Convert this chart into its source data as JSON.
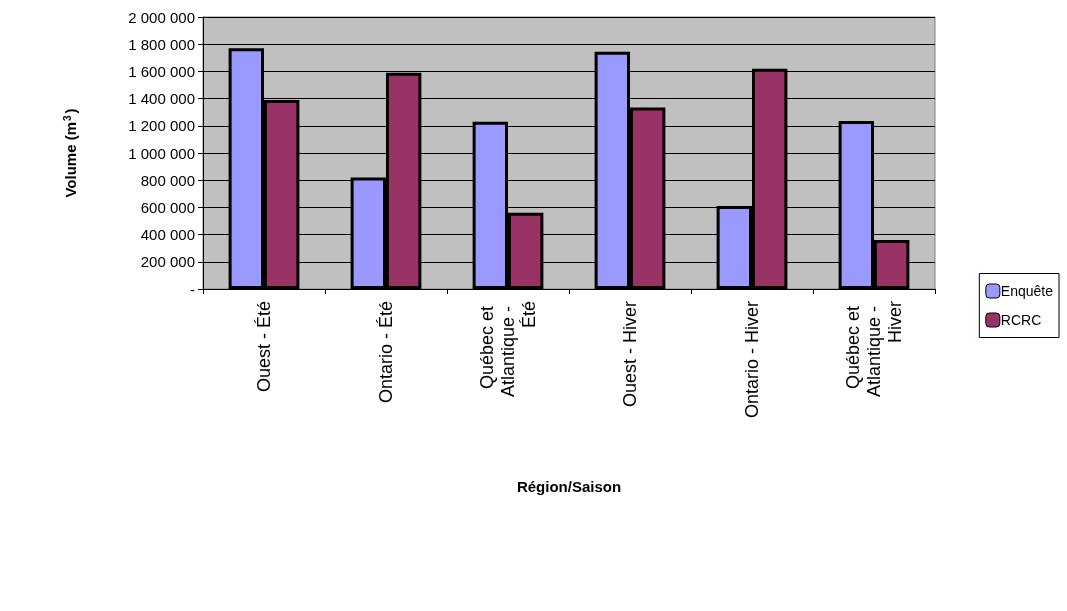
{
  "chart_data": {
    "type": "bar",
    "xlabel": "Région/Saison",
    "ylabel": "Volume (m$^{3}$)",
    "categories": [
      "Ouest - Été",
      "Ontario - Été",
      "Québec et Atlantique - Été",
      "Ouest - Hiver",
      "Ontario - Hiver",
      "Québec et Atlantique - Hiver"
    ],
    "series": [
      {
        "name": "Enquête",
        "color": "#9999ff",
        "values": [
          1770000,
          820000,
          1230000,
          1745000,
          610000,
          1235000
        ]
      },
      {
        "name": "RCRC",
        "color": "#993366",
        "values": [
          1390000,
          1590000,
          560000,
          1335000,
          1620000,
          360000
        ]
      }
    ],
    "ylim": [
      0,
      2000000
    ],
    "yticks": [
      {
        "value": 0,
        "label": "-"
      },
      {
        "value": 200000,
        "label": "200 000"
      },
      {
        "value": 400000,
        "label": "400 000"
      },
      {
        "value": 600000,
        "label": "600 000"
      },
      {
        "value": 800000,
        "label": "800 000"
      },
      {
        "value": 1000000,
        "label": "1 000 000"
      },
      {
        "value": 1200000,
        "label": "1 200 000"
      },
      {
        "value": 1400000,
        "label": "1 400 000"
      },
      {
        "value": 1600000,
        "label": "1 600 000"
      },
      {
        "value": 1800000,
        "label": "1 800 000"
      },
      {
        "value": 2000000,
        "label": "2 000 000"
      }
    ],
    "grid": true,
    "legend": "right"
  }
}
